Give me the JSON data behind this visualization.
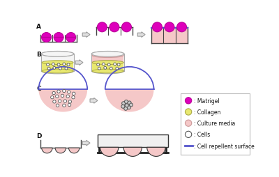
{
  "bg_color": "#ffffff",
  "matrigel_color": "#dd00bb",
  "matrigel_edge": "#bb0099",
  "collagen_color": "#e8e870",
  "collagen_edge": "#aaaa44",
  "media_color": "#f5c8c8",
  "media_edge": "#cc9999",
  "cell_color": "#ffffff",
  "cell_edge": "#555555",
  "box_edge": "#444444",
  "arrow_face": "#e0e0e0",
  "arrow_edge": "#999999",
  "blue_line": "#5555cc",
  "label_color": "#111111",
  "legend_items": [
    {
      "label": ": Matrigel",
      "type": "filled_circle",
      "color": "#dd00bb",
      "edge": "#bb0099"
    },
    {
      "label": ": Collagen",
      "type": "filled_circle",
      "color": "#e8e870",
      "edge": "#aaaa44"
    },
    {
      "label": ": Culture media",
      "type": "filled_circle",
      "color": "#f5c8c8",
      "edge": "#cc9999"
    },
    {
      "label": ": Cells",
      "type": "open_circle",
      "color": "#ffffff",
      "edge": "#555555"
    },
    {
      "label": ": Cell repellent surface",
      "type": "line",
      "color": "#5555cc"
    }
  ]
}
